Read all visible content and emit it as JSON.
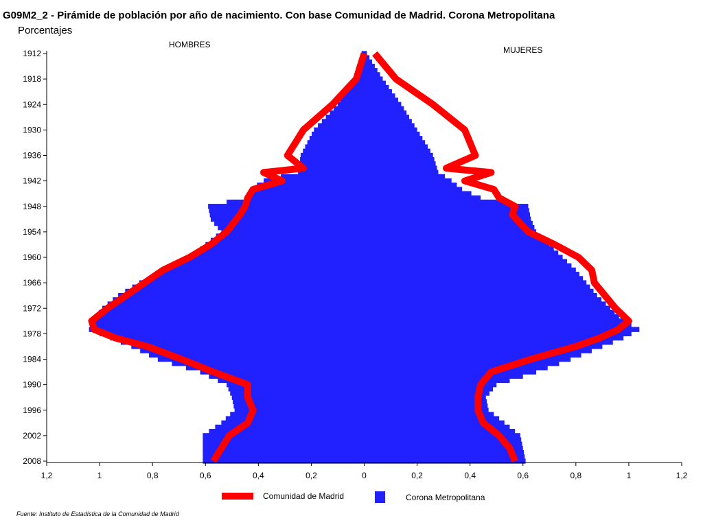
{
  "title": "G09M2_2 - Pirámide de población por año de nacimiento. Con base Comunidad de Madrid. Corona Metropolitana",
  "subtitle": "Porcentajes",
  "labels": {
    "left": "HOMBRES",
    "right": "MUJERES"
  },
  "legend": [
    {
      "label": "Comunidad de Madrid",
      "color": "#ff0000"
    },
    {
      "label": "Corona Metropolitana",
      "color": "#2121ff"
    }
  ],
  "source": "Fuente: Instituto de Estadística de la Comunidad de Madrid",
  "chart_data": {
    "type": "population-pyramid",
    "y_axis": {
      "min": 1912,
      "max": 2008,
      "ticks": [
        1912,
        1918,
        1924,
        1930,
        1936,
        1942,
        1948,
        1954,
        1960,
        1966,
        1972,
        1978,
        1984,
        1990,
        1996,
        2002,
        2008
      ]
    },
    "x_axis": {
      "min": -1.2,
      "max": 1.2,
      "ticks": [
        -1.2,
        -1,
        -0.8,
        -0.6,
        -0.4,
        -0.2,
        0,
        0.2,
        0.4,
        0.6,
        0.8,
        1,
        1.2
      ],
      "tick_labels": [
        "1,2",
        "1",
        "0,8",
        "0,6",
        "0,4",
        "0,2",
        "0",
        "0,2",
        "0,4",
        "0,6",
        "0,8",
        "1",
        "1,2"
      ]
    },
    "series": [
      {
        "name": "Corona Metropolitana",
        "role": "bars",
        "color": "#2121ff",
        "men": [
          [
            1912,
            0.01
          ],
          [
            1918,
            0.04
          ],
          [
            1924,
            0.1
          ],
          [
            1930,
            0.19
          ],
          [
            1936,
            0.24
          ],
          [
            1940,
            0.25
          ],
          [
            1942,
            0.38
          ],
          [
            1944,
            0.43
          ],
          [
            1946,
            0.45
          ],
          [
            1948,
            0.59
          ],
          [
            1951,
            0.58
          ],
          [
            1954,
            0.54
          ],
          [
            1957,
            0.6
          ],
          [
            1960,
            0.66
          ],
          [
            1963,
            0.75
          ],
          [
            1966,
            0.85
          ],
          [
            1969,
            0.93
          ],
          [
            1972,
            0.99
          ],
          [
            1975,
            1.03
          ],
          [
            1977,
            1.04
          ],
          [
            1979,
            0.96
          ],
          [
            1981,
            0.88
          ],
          [
            1984,
            0.78
          ],
          [
            1987,
            0.62
          ],
          [
            1990,
            0.52
          ],
          [
            1993,
            0.5
          ],
          [
            1996,
            0.49
          ],
          [
            1999,
            0.54
          ],
          [
            2002,
            0.61
          ],
          [
            2005,
            0.61
          ],
          [
            2008,
            0.61
          ]
        ],
        "women": [
          [
            1912,
            0.01
          ],
          [
            1918,
            0.07
          ],
          [
            1924,
            0.14
          ],
          [
            1930,
            0.2
          ],
          [
            1936,
            0.26
          ],
          [
            1940,
            0.28
          ],
          [
            1942,
            0.33
          ],
          [
            1944,
            0.37
          ],
          [
            1946,
            0.44
          ],
          [
            1948,
            0.62
          ],
          [
            1951,
            0.63
          ],
          [
            1954,
            0.65
          ],
          [
            1957,
            0.7
          ],
          [
            1960,
            0.75
          ],
          [
            1963,
            0.8
          ],
          [
            1966,
            0.84
          ],
          [
            1969,
            0.88
          ],
          [
            1972,
            0.93
          ],
          [
            1975,
            0.98
          ],
          [
            1977,
            1.04
          ],
          [
            1979,
            0.98
          ],
          [
            1981,
            0.9
          ],
          [
            1984,
            0.78
          ],
          [
            1987,
            0.65
          ],
          [
            1990,
            0.5
          ],
          [
            1993,
            0.46
          ],
          [
            1996,
            0.47
          ],
          [
            1999,
            0.53
          ],
          [
            2002,
            0.59
          ],
          [
            2005,
            0.6
          ],
          [
            2008,
            0.61
          ]
        ]
      },
      {
        "name": "Comunidad de Madrid",
        "role": "line",
        "color": "#ff0000",
        "men": [
          [
            1912,
            0.0
          ],
          [
            1918,
            0.03
          ],
          [
            1924,
            0.12
          ],
          [
            1930,
            0.23
          ],
          [
            1936,
            0.29
          ],
          [
            1939,
            0.23
          ],
          [
            1940,
            0.38
          ],
          [
            1942,
            0.31
          ],
          [
            1944,
            0.42
          ],
          [
            1946,
            0.44
          ],
          [
            1948,
            0.45
          ],
          [
            1950,
            0.47
          ],
          [
            1954,
            0.52
          ],
          [
            1957,
            0.58
          ],
          [
            1960,
            0.66
          ],
          [
            1963,
            0.76
          ],
          [
            1966,
            0.83
          ],
          [
            1969,
            0.9
          ],
          [
            1972,
            0.97
          ],
          [
            1975,
            1.03
          ],
          [
            1977,
            1.02
          ],
          [
            1979,
            0.94
          ],
          [
            1981,
            0.82
          ],
          [
            1984,
            0.69
          ],
          [
            1987,
            0.57
          ],
          [
            1990,
            0.44
          ],
          [
            1993,
            0.44
          ],
          [
            1996,
            0.42
          ],
          [
            1999,
            0.44
          ],
          [
            2002,
            0.51
          ],
          [
            2005,
            0.54
          ],
          [
            2008,
            0.57
          ]
        ],
        "women": [
          [
            1912,
            0.04
          ],
          [
            1918,
            0.12
          ],
          [
            1924,
            0.26
          ],
          [
            1930,
            0.38
          ],
          [
            1936,
            0.42
          ],
          [
            1939,
            0.31
          ],
          [
            1940,
            0.48
          ],
          [
            1942,
            0.38
          ],
          [
            1944,
            0.49
          ],
          [
            1946,
            0.51
          ],
          [
            1948,
            0.57
          ],
          [
            1950,
            0.56
          ],
          [
            1954,
            0.62
          ],
          [
            1957,
            0.72
          ],
          [
            1960,
            0.81
          ],
          [
            1963,
            0.86
          ],
          [
            1966,
            0.87
          ],
          [
            1969,
            0.91
          ],
          [
            1972,
            0.95
          ],
          [
            1975,
            1.0
          ],
          [
            1977,
            0.96
          ],
          [
            1979,
            0.89
          ],
          [
            1981,
            0.8
          ],
          [
            1984,
            0.63
          ],
          [
            1987,
            0.48
          ],
          [
            1990,
            0.44
          ],
          [
            1993,
            0.43
          ],
          [
            1996,
            0.43
          ],
          [
            1999,
            0.45
          ],
          [
            2002,
            0.51
          ],
          [
            2005,
            0.55
          ],
          [
            2008,
            0.57
          ]
        ]
      }
    ]
  }
}
